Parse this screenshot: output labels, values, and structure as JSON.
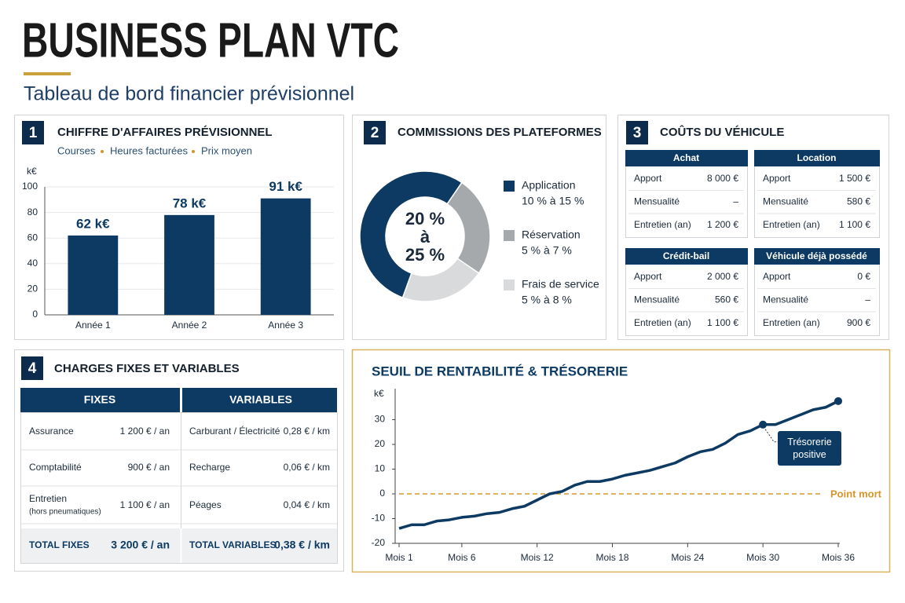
{
  "header": {
    "title": "BUSINESS PLAN VTC",
    "subtitle": "Tableau de bord financier prévisionnel"
  },
  "revenue": {
    "number": "1",
    "title": "CHIFFRE D'AFFAIRES PRÉVISIONNEL",
    "legend": [
      "Courses",
      "Heures facturées",
      "Prix moyen"
    ],
    "chart_data": {
      "type": "bar",
      "y_label": "k€",
      "categories": [
        "Année 1",
        "Année 2",
        "Année 3"
      ],
      "values": [
        62,
        78,
        91
      ],
      "value_labels": [
        "62 k€",
        "78 k€",
        "91 k€"
      ],
      "color": "#0d3a63",
      "ylim": [
        0,
        100
      ],
      "yticks": [
        0,
        20,
        40,
        60,
        80,
        100
      ],
      "grid": true
    }
  },
  "commissions": {
    "number": "2",
    "title": "COMMISSIONS DES PLATEFORMES",
    "chart_data": {
      "type": "pie",
      "donut": true,
      "center_label": [
        "20 %",
        "à",
        "25 %"
      ],
      "categories": [
        "Application",
        "Réservation",
        "Frais de service"
      ],
      "ranges": [
        "10 % à 15 %",
        "5 % à 7 %",
        "5 % à 8 %"
      ],
      "values": [
        54,
        25,
        21
      ],
      "colors": [
        "#0d3a63",
        "#a6a9ab",
        "#d8dadb"
      ]
    }
  },
  "vehicle": {
    "number": "3",
    "title": "COÛTS DU VÉHICULE",
    "tables": [
      {
        "title": "Achat",
        "rows": [
          [
            "Apport",
            "8 000 €"
          ],
          [
            "Mensualité",
            "–"
          ],
          [
            "Entretien (an)",
            "1 200 €"
          ]
        ]
      },
      {
        "title": "Location",
        "rows": [
          [
            "Apport",
            "1 500 €"
          ],
          [
            "Mensualité",
            "580 €"
          ],
          [
            "Entretien (an)",
            "1 100 €"
          ]
        ]
      },
      {
        "title": "Crédit-bail",
        "rows": [
          [
            "Apport",
            "2 000 €"
          ],
          [
            "Mensualité",
            "560 €"
          ],
          [
            "Entretien (an)",
            "1 100 €"
          ]
        ]
      },
      {
        "title": "Véhicule déjà possédé",
        "rows": [
          [
            "Apport",
            "0 €"
          ],
          [
            "Mensualité",
            "–"
          ],
          [
            "Entretien (an)",
            "900 €"
          ]
        ]
      }
    ]
  },
  "charges": {
    "number": "4",
    "title": "CHARGES FIXES ET VARIABLES",
    "headers": [
      "FIXES",
      "VARIABLES"
    ],
    "rows": [
      [
        "Assurance",
        "1 200 € / an",
        "Carburant / Électricité",
        "0,28 € / km"
      ],
      [
        "Comptabilité",
        "900 € / an",
        "Recharge",
        "0,06 € / km"
      ],
      [
        "Entretien",
        "1 100 € / an",
        "Péages",
        "0,04 € / km"
      ]
    ],
    "note": "(hors pneumatiques)",
    "totals": [
      "TOTAL FIXES",
      "3 200 € / an",
      "TOTAL VARIABLES",
      "0,38 € / km"
    ]
  },
  "breakeven": {
    "chart_data": {
      "type": "line",
      "title": "SEUIL DE RENTABILITÉ & TRÉSORERIE",
      "y_label": "k€",
      "x": [
        1,
        2,
        3,
        4,
        5,
        6,
        7,
        8,
        9,
        10,
        11,
        12,
        13,
        14,
        15,
        16,
        17,
        18,
        19,
        20,
        21,
        22,
        23,
        24,
        25,
        26,
        27,
        28,
        29,
        30,
        31,
        32,
        33,
        34,
        35,
        36
      ],
      "values": [
        -14,
        -12.5,
        -12.5,
        -11,
        -10.5,
        -9.5,
        -9,
        -8,
        -7.5,
        -6,
        -5,
        -2.5,
        0,
        1,
        3.5,
        5,
        5,
        6,
        7.5,
        8.5,
        9.5,
        11,
        12.5,
        15,
        17,
        18,
        20.5,
        24,
        25.5,
        28,
        28,
        30,
        32,
        34,
        35,
        37.5
      ],
      "color": "#0d3a63",
      "xlim": [
        1,
        36
      ],
      "xticks": [
        {
          "value": 1,
          "label": "Mois 1"
        },
        {
          "value": 6,
          "label": "Mois 6"
        },
        {
          "value": 12,
          "label": "Mois 12"
        },
        {
          "value": 18,
          "label": "Mois 18"
        },
        {
          "value": 24,
          "label": "Mois 24"
        },
        {
          "value": 30,
          "label": "Mois 30"
        },
        {
          "value": 36,
          "label": "Mois 36"
        }
      ],
      "ylim": [
        -20,
        40
      ],
      "yticks": [
        -20,
        -10,
        0,
        10,
        20,
        30
      ],
      "reference_line": {
        "value": 0,
        "label": "Point mort",
        "color": "#d4952a"
      },
      "annotation": {
        "text": "Trésorerie positive",
        "x": 30
      }
    }
  }
}
